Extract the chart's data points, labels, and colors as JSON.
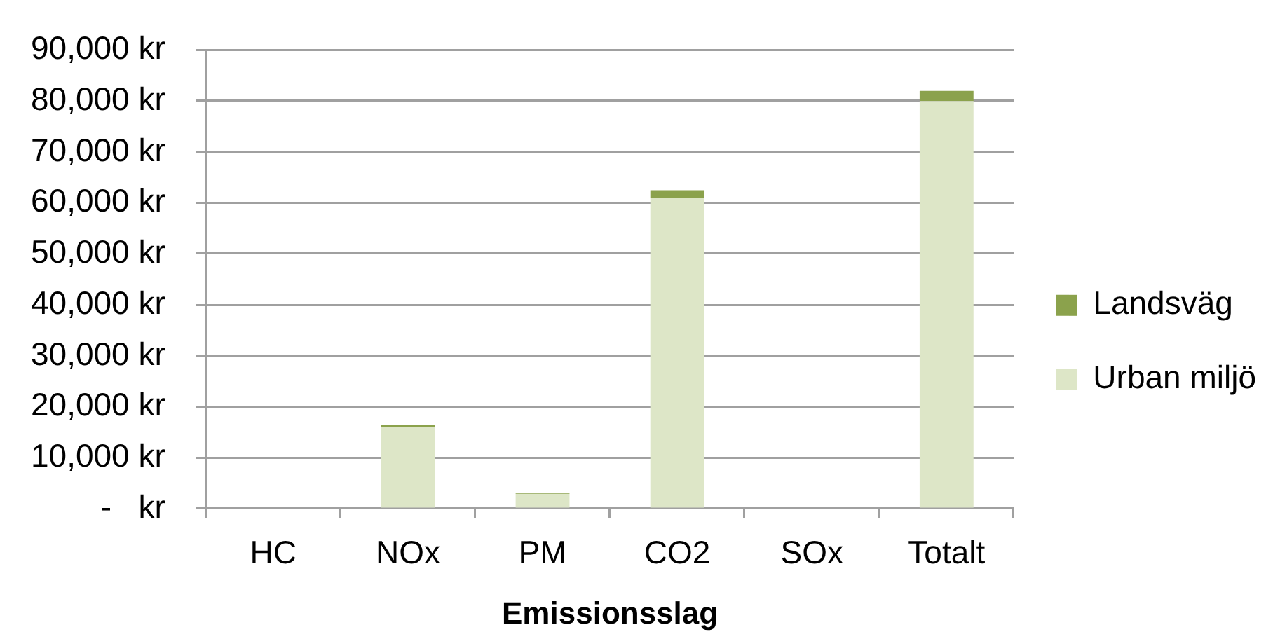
{
  "chart_data": {
    "type": "bar",
    "xlabel": "Emissionsslag",
    "categories": [
      "HC",
      "NOx",
      "PM",
      "CO2",
      "SOx",
      "Totalt"
    ],
    "stacked": true,
    "series": [
      {
        "name": "Urban miljö",
        "color": "#dde6c7",
        "values": [
          0,
          16000,
          2900,
          61000,
          0,
          80000
        ]
      },
      {
        "name": "Landsväg",
        "color": "#8ba24c",
        "values": [
          0,
          400,
          100,
          1500,
          0,
          2000
        ]
      }
    ],
    "ylim": [
      0,
      90000
    ],
    "yticks": [
      {
        "value": 0,
        "label": "-   kr"
      },
      {
        "value": 10000,
        "label": "10,000 kr"
      },
      {
        "value": 20000,
        "label": "20,000 kr"
      },
      {
        "value": 30000,
        "label": "30,000 kr"
      },
      {
        "value": 40000,
        "label": "40,000 kr"
      },
      {
        "value": 50000,
        "label": "50,000 kr"
      },
      {
        "value": 60000,
        "label": "60,000 kr"
      },
      {
        "value": 70000,
        "label": "70,000 kr"
      },
      {
        "value": 80000,
        "label": "80,000 kr"
      },
      {
        "value": 90000,
        "label": "90,000 kr"
      }
    ],
    "grid": "y",
    "legend": "right"
  }
}
